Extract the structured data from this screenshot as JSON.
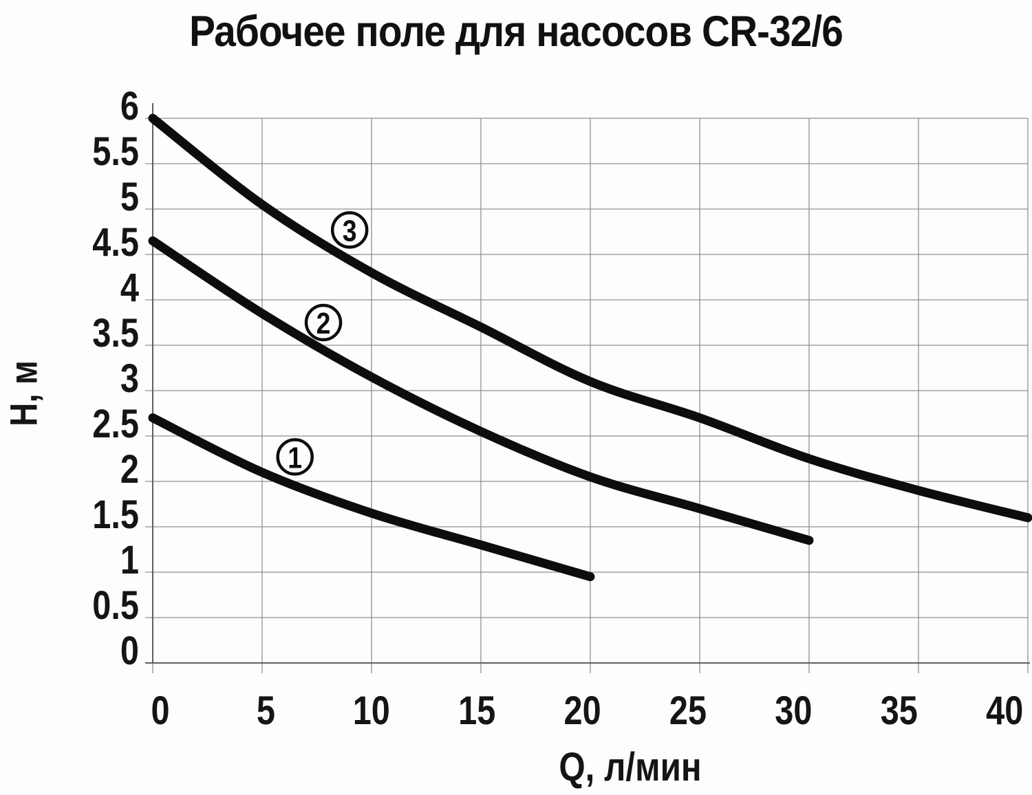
{
  "title": "Рабочее поле для насосов CR-32/6",
  "chart_data": {
    "type": "line",
    "title": "Рабочее поле для насосов CR-32/6",
    "xlabel": "Q, л/мин",
    "ylabel": "H, м",
    "xlim": [
      0,
      40
    ],
    "ylim": [
      0,
      6
    ],
    "xticks": [
      0,
      5,
      10,
      15,
      20,
      25,
      30,
      35,
      40
    ],
    "yticks": [
      0,
      0.5,
      1,
      1.5,
      2,
      2.5,
      3,
      3.5,
      4,
      4.5,
      5,
      5.5,
      6
    ],
    "grid": true,
    "legend": "none",
    "series": [
      {
        "name": "1",
        "label_pos": {
          "x": 6.5,
          "y": 2.27
        },
        "points": [
          [
            0,
            2.7
          ],
          [
            5,
            2.1
          ],
          [
            10,
            1.65
          ],
          [
            15,
            1.3
          ],
          [
            20,
            0.95
          ]
        ]
      },
      {
        "name": "2",
        "label_pos": {
          "x": 7.8,
          "y": 3.75
        },
        "points": [
          [
            0,
            4.65
          ],
          [
            5,
            3.85
          ],
          [
            10,
            3.15
          ],
          [
            15,
            2.55
          ],
          [
            20,
            2.05
          ],
          [
            25,
            1.7
          ],
          [
            30,
            1.35
          ]
        ]
      },
      {
        "name": "3",
        "label_pos": {
          "x": 9.0,
          "y": 4.77
        },
        "points": [
          [
            0,
            6.0
          ],
          [
            5,
            5.05
          ],
          [
            10,
            4.3
          ],
          [
            15,
            3.7
          ],
          [
            20,
            3.1
          ],
          [
            25,
            2.7
          ],
          [
            30,
            2.25
          ],
          [
            35,
            1.9
          ],
          [
            40,
            1.6
          ]
        ]
      }
    ],
    "line_color": "#0d0d0d",
    "grid_color": "#8f8f8f",
    "axis_color": "#5f5f5f",
    "text_color": "#151515",
    "background": "#fdfdfd"
  }
}
